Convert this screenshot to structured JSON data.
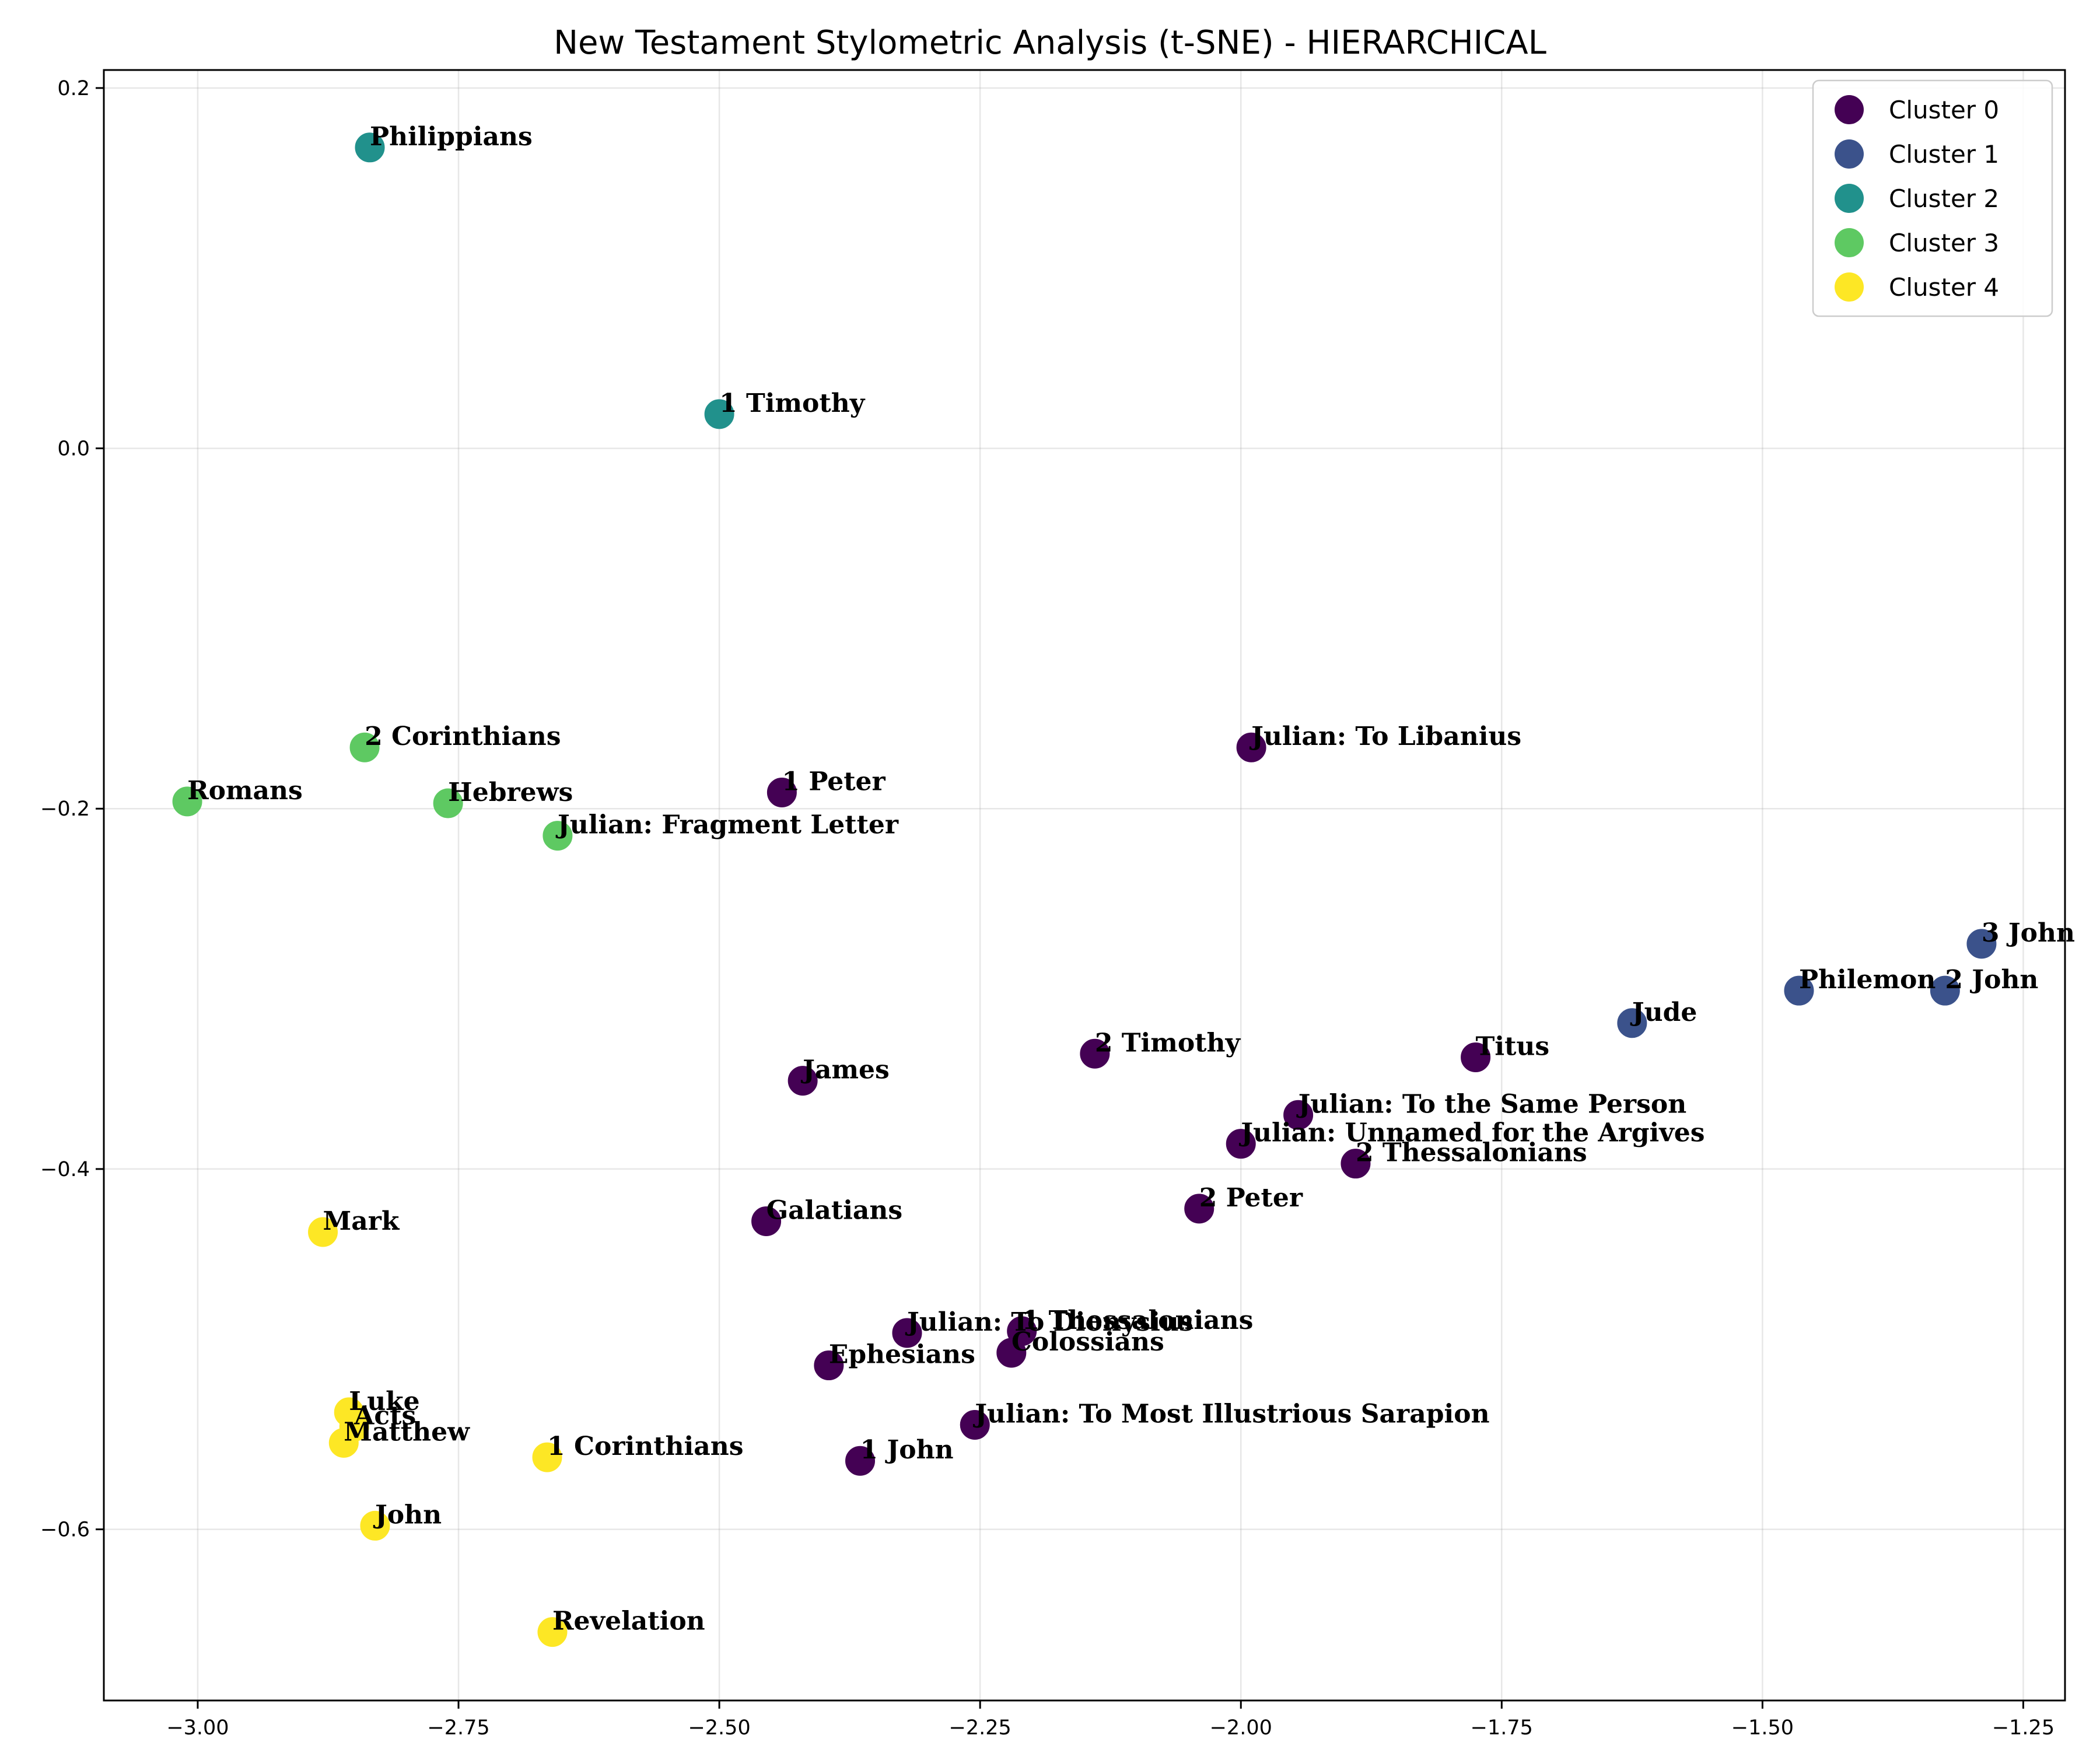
{
  "chart_data": {
    "type": "scatter",
    "title": "New Testament Stylometric Analysis (t-SNE) - HIERARCHICAL",
    "xlabel": "",
    "ylabel": "",
    "xlim": [
      -3.09,
      -1.21
    ],
    "ylim": [
      -0.695,
      0.21
    ],
    "x_ticks": [
      -3.0,
      -2.75,
      -2.5,
      -2.25,
      -2.0,
      -1.75,
      -1.5,
      -1.25
    ],
    "x_tick_labels": [
      "−3.00",
      "−2.75",
      "−2.50",
      "−2.25",
      "−2.00",
      "−1.75",
      "−1.50",
      "−1.25"
    ],
    "y_ticks": [
      0.2,
      0.0,
      -0.2,
      -0.4,
      -0.6
    ],
    "y_tick_labels": [
      "0.2",
      "0.0",
      "−0.2",
      "−0.4",
      "−0.6"
    ],
    "grid": true,
    "legend_position": "top-right",
    "series": [
      {
        "name": "Cluster 0",
        "color": "#440154",
        "points": [
          {
            "label": "1 Peter",
            "x": -2.44,
            "y": -0.191
          },
          {
            "label": "Julian: To Libanius",
            "x": -1.99,
            "y": -0.166
          },
          {
            "label": "James",
            "x": -2.42,
            "y": -0.351
          },
          {
            "label": "2 Timothy",
            "x": -2.14,
            "y": -0.336
          },
          {
            "label": "Titus",
            "x": -1.775,
            "y": -0.338
          },
          {
            "label": "Julian: To the Same Person",
            "x": -1.945,
            "y": -0.37
          },
          {
            "label": "Julian: Unnamed for the Argives",
            "x": -2.0,
            "y": -0.386
          },
          {
            "label": "2 Thessalonians",
            "x": -1.89,
            "y": -0.397
          },
          {
            "label": "2 Peter",
            "x": -2.04,
            "y": -0.422
          },
          {
            "label": "Galatians",
            "x": -2.455,
            "y": -0.429
          },
          {
            "label": "Julian: To Dionysius",
            "x": -2.32,
            "y": -0.491
          },
          {
            "label": "1 Thessalonians",
            "x": -2.21,
            "y": -0.49
          },
          {
            "label": "Colossians",
            "x": -2.22,
            "y": -0.502
          },
          {
            "label": "Ephesians",
            "x": -2.395,
            "y": -0.509
          },
          {
            "label": "Julian: To Most Illustrious Sarapion",
            "x": -2.255,
            "y": -0.542
          },
          {
            "label": "1 John",
            "x": -2.365,
            "y": -0.562
          }
        ]
      },
      {
        "name": "Cluster 1",
        "color": "#3b528b",
        "points": [
          {
            "label": "3 John",
            "x": -1.29,
            "y": -0.275
          },
          {
            "label": "Philemon",
            "x": -1.465,
            "y": -0.301
          },
          {
            "label": "2 John",
            "x": -1.325,
            "y": -0.301
          },
          {
            "label": "Jude",
            "x": -1.625,
            "y": -0.319
          }
        ]
      },
      {
        "name": "Cluster 2",
        "color": "#21918c",
        "points": [
          {
            "label": "Philippians",
            "x": -2.835,
            "y": 0.167
          },
          {
            "label": "1 Timothy",
            "x": -2.5,
            "y": 0.019
          }
        ]
      },
      {
        "name": "Cluster 3",
        "color": "#5ec962",
        "points": [
          {
            "label": "2 Corinthians",
            "x": -2.84,
            "y": -0.166
          },
          {
            "label": "Romans",
            "x": -3.01,
            "y": -0.196
          },
          {
            "label": "Hebrews",
            "x": -2.76,
            "y": -0.197
          },
          {
            "label": "Julian: Fragment Letter",
            "x": -2.655,
            "y": -0.215
          }
        ]
      },
      {
        "name": "Cluster 4",
        "color": "#fde725",
        "points": [
          {
            "label": "Mark",
            "x": -2.88,
            "y": -0.435
          },
          {
            "label": "Luke",
            "x": -2.855,
            "y": -0.535
          },
          {
            "label": "Acts",
            "x": -2.85,
            "y": -0.543
          },
          {
            "label": "Matthew",
            "x": -2.86,
            "y": -0.552
          },
          {
            "label": "1 Corinthians",
            "x": -2.665,
            "y": -0.56
          },
          {
            "label": "John",
            "x": -2.83,
            "y": -0.598
          },
          {
            "label": "Revelation",
            "x": -2.66,
            "y": -0.657
          }
        ]
      }
    ]
  }
}
